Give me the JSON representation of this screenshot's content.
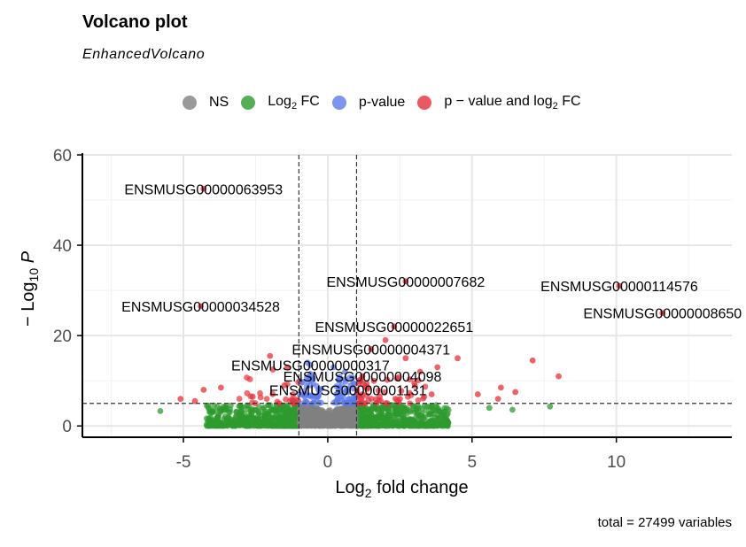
{
  "header": {
    "title": "Volcano plot",
    "subtitle": "EnhancedVolcano",
    "caption": "total = 27499 variables"
  },
  "legend": [
    {
      "key": "NS",
      "prefix": "NS",
      "sub": "",
      "suffix": "",
      "color": "#808080"
    },
    {
      "key": "log2fc",
      "prefix": "Log",
      "sub": "2",
      "suffix": " FC",
      "color": "#2e9a2e"
    },
    {
      "key": "pvalue",
      "prefix": "p-value",
      "sub": "",
      "suffix": "",
      "color": "#5b7bea"
    },
    {
      "key": "both",
      "prefix": "p − value and log",
      "sub": "2",
      "suffix": " FC",
      "color": "#e5303a"
    }
  ],
  "chart_data": {
    "type": "scatter",
    "xlabel": {
      "prefix": "Log",
      "sub": "2",
      "suffix": " fold change"
    },
    "ylabel": {
      "prefix": "− Log",
      "sub": "10",
      "suffix": " P"
    },
    "xlim": [
      -8.5,
      14
    ],
    "ylim": [
      -2.5,
      60
    ],
    "x_ticks": [
      -5,
      0,
      5,
      10
    ],
    "y_ticks": [
      0,
      20,
      40,
      60
    ],
    "fc_cutoff": 1,
    "p_cutoff_neglog10": 5,
    "grid": true,
    "legend_position": "top",
    "labeled_points": [
      {
        "label": "ENSMUSG00000063953",
        "x": -4.3,
        "y": 52.5,
        "group": "both"
      },
      {
        "label": "ENSMUSG00000034528",
        "x": -4.4,
        "y": 26.5,
        "group": "both"
      },
      {
        "label": "ENSMUSG00000007682",
        "x": 2.7,
        "y": 32.0,
        "group": "both"
      },
      {
        "label": "ENSMUSG00000114576",
        "x": 10.1,
        "y": 31.0,
        "group": "both"
      },
      {
        "label": "ENSMUSG00000008650",
        "x": 11.6,
        "y": 25.0,
        "group": "both"
      },
      {
        "label": "ENSMUSG00000022651",
        "x": 2.3,
        "y": 22.0,
        "group": "both"
      },
      {
        "label": "ENSMUSG00000004371",
        "x": 1.5,
        "y": 17.0,
        "group": "both"
      },
      {
        "label": "ENSMUSG00000000317",
        "x": -0.6,
        "y": 13.5,
        "group": "pvalue"
      },
      {
        "label": "ENSMUSG00000004098",
        "x": 1.2,
        "y": 11.0,
        "group": "both"
      },
      {
        "label": "ENSMUSG00000001131",
        "x": 0.7,
        "y": 8.0,
        "group": "pvalue"
      }
    ],
    "extra_significant_points": [
      {
        "x": 7.1,
        "y": 14.5
      },
      {
        "x": 8.0,
        "y": 11.0
      },
      {
        "x": 6.0,
        "y": 8.5
      },
      {
        "x": 6.5,
        "y": 7.5
      },
      {
        "x": 5.2,
        "y": 7.0
      },
      {
        "x": 5.9,
        "y": 6.0
      },
      {
        "x": 4.5,
        "y": 15.0
      },
      {
        "x": 3.8,
        "y": 13.0
      },
      {
        "x": 3.2,
        "y": 12.0
      },
      {
        "x": 2.7,
        "y": 15.0
      },
      {
        "x": 2.0,
        "y": 19.0
      },
      {
        "x": 2.4,
        "y": 10.5
      },
      {
        "x": 3.0,
        "y": 9.5
      },
      {
        "x": 1.6,
        "y": 10.0
      },
      {
        "x": 1.2,
        "y": 7.0
      },
      {
        "x": 1.8,
        "y": 6.5
      },
      {
        "x": 2.5,
        "y": 6.0
      },
      {
        "x": 3.6,
        "y": 7.0
      },
      {
        "x": -2.0,
        "y": 15.5
      },
      {
        "x": -1.9,
        "y": 12.5
      },
      {
        "x": -1.5,
        "y": 9.0
      },
      {
        "x": -1.2,
        "y": 7.0
      },
      {
        "x": -2.6,
        "y": 6.5
      },
      {
        "x": -3.7,
        "y": 8.5
      },
      {
        "x": -4.3,
        "y": 8.0
      },
      {
        "x": -5.1,
        "y": 6.0
      },
      {
        "x": -4.6,
        "y": 5.5
      },
      {
        "x": -1.4,
        "y": 13.0
      }
    ],
    "extra_pvalue_points": [
      {
        "x": -0.7,
        "y": 14.0
      },
      {
        "x": -0.5,
        "y": 10.5
      },
      {
        "x": 0.4,
        "y": 10.0
      },
      {
        "x": 0.6,
        "y": 12.0
      },
      {
        "x": 0.8,
        "y": 9.0
      },
      {
        "x": -0.3,
        "y": 8.0
      },
      {
        "x": 0.3,
        "y": 7.0
      },
      {
        "x": -0.8,
        "y": 6.5
      },
      {
        "x": 0.9,
        "y": 6.5
      },
      {
        "x": -0.6,
        "y": 11.5
      },
      {
        "x": 0.2,
        "y": 13.0
      },
      {
        "x": 0.7,
        "y": 7.5
      }
    ],
    "extra_fc_points": [
      {
        "x": -5.8,
        "y": 3.3
      },
      {
        "x": 7.7,
        "y": 4.3
      },
      {
        "x": 6.4,
        "y": 3.6
      },
      {
        "x": 5.6,
        "y": 4.0
      }
    ]
  }
}
